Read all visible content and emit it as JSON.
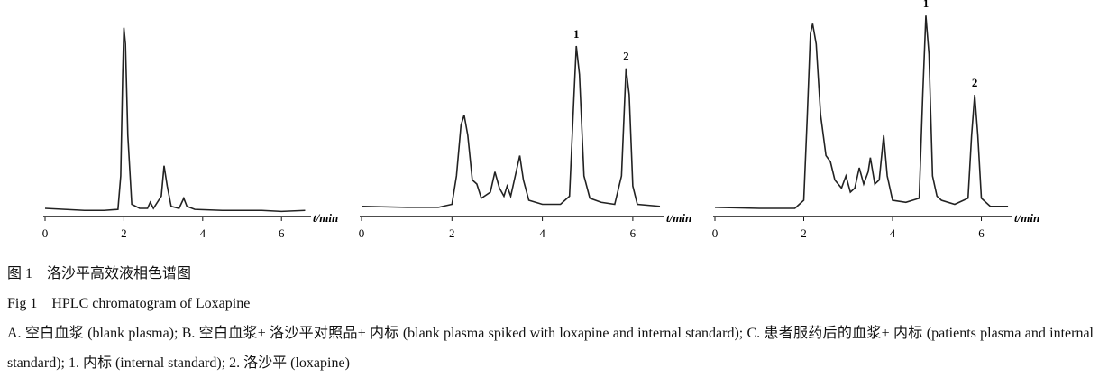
{
  "chart_data": [
    {
      "type": "line",
      "x": [
        0,
        0.5,
        1,
        1.5,
        1.85,
        1.92,
        1.97,
        2.0,
        2.04,
        2.1,
        2.2,
        2.4,
        2.6,
        2.67,
        2.75,
        2.95,
        3.02,
        3.1,
        3.2,
        3.4,
        3.52,
        3.6,
        3.8,
        4.5,
        5,
        5.5,
        6,
        6.6
      ],
      "series": [
        {
          "color": "#222222",
          "values": [
            4,
            3.5,
            3,
            3,
            3.5,
            20,
            70,
            93,
            85,
            40,
            6,
            4,
            4,
            7,
            4,
            10,
            25,
            15,
            5,
            4,
            9,
            5,
            3.5,
            3,
            3,
            3,
            2.5,
            3
          ]
        }
      ],
      "xlim": [
        0,
        6.75
      ],
      "ylim": [
        0,
        100
      ],
      "xticks": [
        0,
        2,
        4,
        6
      ],
      "xlabel": "t/min"
    },
    {
      "type": "line",
      "x": [
        0,
        1,
        1.7,
        2.0,
        2.1,
        2.2,
        2.27,
        2.35,
        2.45,
        2.55,
        2.65,
        2.85,
        2.95,
        3.05,
        3.15,
        3.22,
        3.3,
        3.42,
        3.5,
        3.58,
        3.7,
        4,
        4.4,
        4.6,
        4.7,
        4.75,
        4.82,
        4.92,
        5.05,
        5.3,
        5.6,
        5.75,
        5.85,
        5.92,
        6.0,
        6.1,
        6.6
      ],
      "series": [
        {
          "color": "#222222",
          "values": [
            5,
            4.5,
            4.5,
            6,
            20,
            45,
            50,
            40,
            18,
            16,
            9,
            12,
            22,
            14,
            10,
            15,
            10,
            22,
            30,
            18,
            8,
            6,
            6,
            10,
            60,
            84,
            70,
            20,
            9,
            7,
            6,
            20,
            73,
            60,
            15,
            6,
            5
          ]
        }
      ],
      "xlim": [
        0,
        6.7
      ],
      "ylim": [
        0,
        100
      ],
      "xticks": [
        0,
        2,
        4,
        6
      ],
      "xlabel": "t/min",
      "annotations": [
        {
          "text": "1",
          "x": 4.75,
          "y": 84
        },
        {
          "text": "2",
          "x": 5.85,
          "y": 73
        }
      ]
    },
    {
      "type": "line",
      "x": [
        0,
        1,
        1.8,
        2.0,
        2.08,
        2.15,
        2.2,
        2.28,
        2.38,
        2.5,
        2.6,
        2.7,
        2.85,
        2.95,
        3.05,
        3.15,
        3.25,
        3.35,
        3.45,
        3.5,
        3.6,
        3.7,
        3.8,
        3.88,
        4.0,
        4.3,
        4.6,
        4.68,
        4.75,
        4.82,
        4.9,
        5.0,
        5.1,
        5.4,
        5.7,
        5.78,
        5.85,
        5.92,
        6.0,
        6.2,
        6.6
      ],
      "series": [
        {
          "color": "#222222",
          "values": [
            4.5,
            4,
            4,
            8,
            50,
            90,
            95,
            85,
            50,
            30,
            27,
            18,
            14,
            20,
            12,
            14,
            24,
            16,
            22,
            29,
            16,
            18,
            40,
            20,
            8,
            7,
            9,
            60,
            99,
            80,
            20,
            10,
            8,
            6,
            9,
            40,
            60,
            40,
            9,
            5,
            5
          ]
        }
      ],
      "xlim": [
        0,
        6.7
      ],
      "ylim": [
        0,
        100
      ],
      "xticks": [
        0,
        2,
        4,
        6
      ],
      "xlabel": "t/min",
      "annotations": [
        {
          "text": "1",
          "x": 4.75,
          "y": 99
        },
        {
          "text": "2",
          "x": 5.85,
          "y": 60
        }
      ]
    }
  ],
  "caption": {
    "title_cn": "图 1　洛沙平高效液相色谱图",
    "title_en": "Fig 1　HPLC chromatogram of Loxapine",
    "legend": "A. 空白血浆 (blank plasma); B. 空白血浆+ 洛沙平对照品+ 内标 (blank plasma spiked with loxapine and internal standard); C. 患者服药后的血浆+ 内标 (patients plasma and internal standard); 1. 内标 (internal standard); 2. 洛沙平 (loxapine)"
  }
}
